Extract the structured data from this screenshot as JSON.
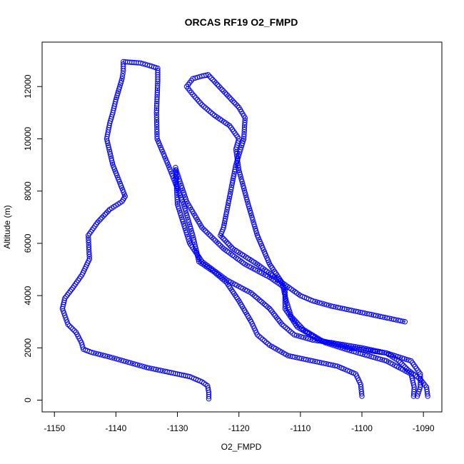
{
  "chart_data": {
    "type": "scatter",
    "title": "ORCAS RF19 O2_FMPD",
    "xlabel": "O2_FMPD",
    "ylabel": "Altitude (m)",
    "xlim": [
      -1152,
      -1087
    ],
    "ylim": [
      -450,
      13700
    ],
    "xticks": [
      -1150,
      -1140,
      -1130,
      -1120,
      -1110,
      -1100,
      -1090
    ],
    "yticks": [
      0,
      2000,
      4000,
      6000,
      8000,
      10000,
      12000
    ],
    "grid": false,
    "marker": "open-circle",
    "color": "#0000ff",
    "profiles": [
      {
        "points": [
          [
            -1124.9,
            50
          ],
          [
            -1124.9,
            300
          ],
          [
            -1125.1,
            550
          ],
          [
            -1126,
            700
          ],
          [
            -1128,
            900
          ],
          [
            -1130,
            1000
          ],
          [
            -1132,
            1100
          ],
          [
            -1135,
            1250
          ],
          [
            -1138,
            1450
          ],
          [
            -1141,
            1650
          ],
          [
            -1144,
            1830
          ],
          [
            -1145.3,
            1950
          ],
          [
            -1145.6,
            2200
          ],
          [
            -1146.5,
            2600
          ],
          [
            -1147.8,
            2900
          ],
          [
            -1148.7,
            3500
          ],
          [
            -1148.3,
            3900
          ],
          [
            -1147,
            4300
          ],
          [
            -1145.5,
            4800
          ],
          [
            -1144.3,
            5400
          ],
          [
            -1144.5,
            6300
          ],
          [
            -1143,
            6800
          ],
          [
            -1141,
            7300
          ],
          [
            -1139,
            7600
          ],
          [
            -1138.5,
            7800
          ],
          [
            -1140.5,
            9000
          ],
          [
            -1141.5,
            10000
          ],
          [
            -1141,
            10600
          ],
          [
            -1140.5,
            11000
          ],
          [
            -1140,
            11500
          ],
          [
            -1139,
            12300
          ],
          [
            -1138.8,
            12600
          ],
          [
            -1138.8,
            12950
          ],
          [
            -1136,
            12900
          ],
          [
            -1134.5,
            12800
          ],
          [
            -1133.2,
            12700
          ],
          [
            -1133.2,
            12200
          ],
          [
            -1133.4,
            11000
          ],
          [
            -1133.3,
            10000
          ],
          [
            -1131.5,
            9000
          ],
          [
            -1129,
            7500
          ],
          [
            -1127.5,
            6300
          ],
          [
            -1126.5,
            5300
          ],
          [
            -1124,
            4900
          ],
          [
            -1122,
            4500
          ],
          [
            -1120,
            3800
          ],
          [
            -1118,
            3000
          ],
          [
            -1117,
            2500
          ],
          [
            -1115,
            2100
          ],
          [
            -1112,
            1700
          ],
          [
            -1108,
            1500
          ],
          [
            -1104,
            1300
          ],
          [
            -1101,
            1000
          ],
          [
            -1100.2,
            600
          ],
          [
            -1100,
            150
          ]
        ]
      },
      {
        "points": [
          [
            -1089.3,
            150
          ],
          [
            -1089.5,
            500
          ],
          [
            -1090.5,
            800
          ],
          [
            -1092.5,
            1150
          ],
          [
            -1094,
            1500
          ],
          [
            -1096,
            1800
          ],
          [
            -1100,
            2000
          ],
          [
            -1105,
            2200
          ],
          [
            -1108,
            2300
          ],
          [
            -1111,
            2500
          ],
          [
            -1113,
            2900
          ],
          [
            -1115,
            3500
          ],
          [
            -1118,
            4100
          ],
          [
            -1122,
            4600
          ],
          [
            -1126,
            5300
          ],
          [
            -1128,
            6000
          ],
          [
            -1130,
            7500
          ],
          [
            -1130.3,
            8900
          ]
        ]
      },
      {
        "points": [
          [
            -1130.2,
            8800
          ],
          [
            -1128.5,
            7600
          ],
          [
            -1126,
            6600
          ],
          [
            -1122.5,
            5800
          ],
          [
            -1119,
            5200
          ],
          [
            -1115,
            4700
          ],
          [
            -1112.5,
            4300
          ],
          [
            -1112.5,
            3500
          ],
          [
            -1110.5,
            2800
          ],
          [
            -1107,
            2300
          ],
          [
            -1102,
            2000
          ],
          [
            -1096,
            1800
          ],
          [
            -1092,
            1500
          ],
          [
            -1090.5,
            1000
          ],
          [
            -1090.5,
            500
          ],
          [
            -1091,
            150
          ]
        ]
      },
      {
        "points": [
          [
            -1093,
            3000
          ],
          [
            -1097,
            3200
          ],
          [
            -1101,
            3400
          ],
          [
            -1105,
            3600
          ],
          [
            -1108,
            3800
          ],
          [
            -1110,
            4000
          ],
          [
            -1113,
            4500
          ],
          [
            -1115,
            5200
          ],
          [
            -1117,
            6300
          ],
          [
            -1118.5,
            7500
          ],
          [
            -1120,
            8800
          ],
          [
            -1120.5,
            9600
          ],
          [
            -1120,
            10000
          ],
          [
            -1121.5,
            10500
          ],
          [
            -1124,
            10900
          ],
          [
            -1126,
            11300
          ],
          [
            -1127.5,
            11700
          ],
          [
            -1128.5,
            12000
          ],
          [
            -1127.5,
            12300
          ],
          [
            -1126,
            12400
          ],
          [
            -1125,
            12450
          ],
          [
            -1124,
            12200
          ],
          [
            -1122,
            11700
          ],
          [
            -1120,
            11200
          ],
          [
            -1119,
            10800
          ],
          [
            -1119.2,
            10000
          ],
          [
            -1120.5,
            9000
          ],
          [
            -1121.5,
            7800
          ],
          [
            -1122.5,
            6600
          ],
          [
            -1123,
            6300
          ],
          [
            -1121,
            5800
          ],
          [
            -1117,
            5200
          ],
          [
            -1113,
            4500
          ],
          [
            -1112.3,
            3800
          ],
          [
            -1111.5,
            3200
          ],
          [
            -1109.5,
            2700
          ],
          [
            -1106,
            2200
          ],
          [
            -1102,
            1900
          ],
          [
            -1096,
            1500
          ],
          [
            -1092,
            1000
          ],
          [
            -1091.5,
            500
          ],
          [
            -1091.6,
            150
          ]
        ]
      }
    ]
  }
}
